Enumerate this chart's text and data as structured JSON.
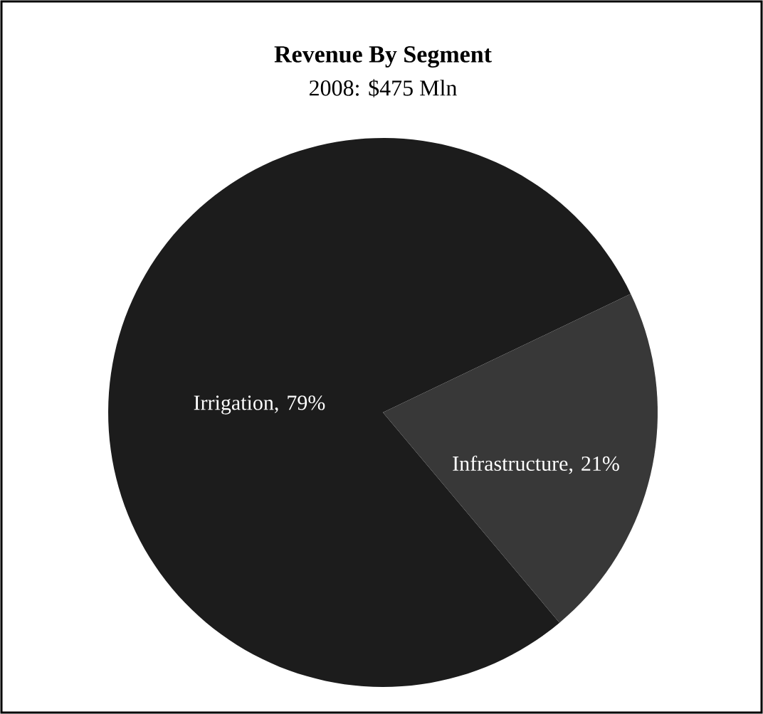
{
  "chart_data": {
    "type": "pie",
    "title": "Revenue By Segment",
    "subtitle": "2008: $475 Mln",
    "categories": [
      "Irrigation",
      "Infrastructure"
    ],
    "values": [
      79,
      21
    ],
    "colors": [
      "#1c1c1c",
      "#383838"
    ],
    "data_labels": true,
    "value_labels": [
      ", 79%",
      ", 21%"
    ]
  }
}
